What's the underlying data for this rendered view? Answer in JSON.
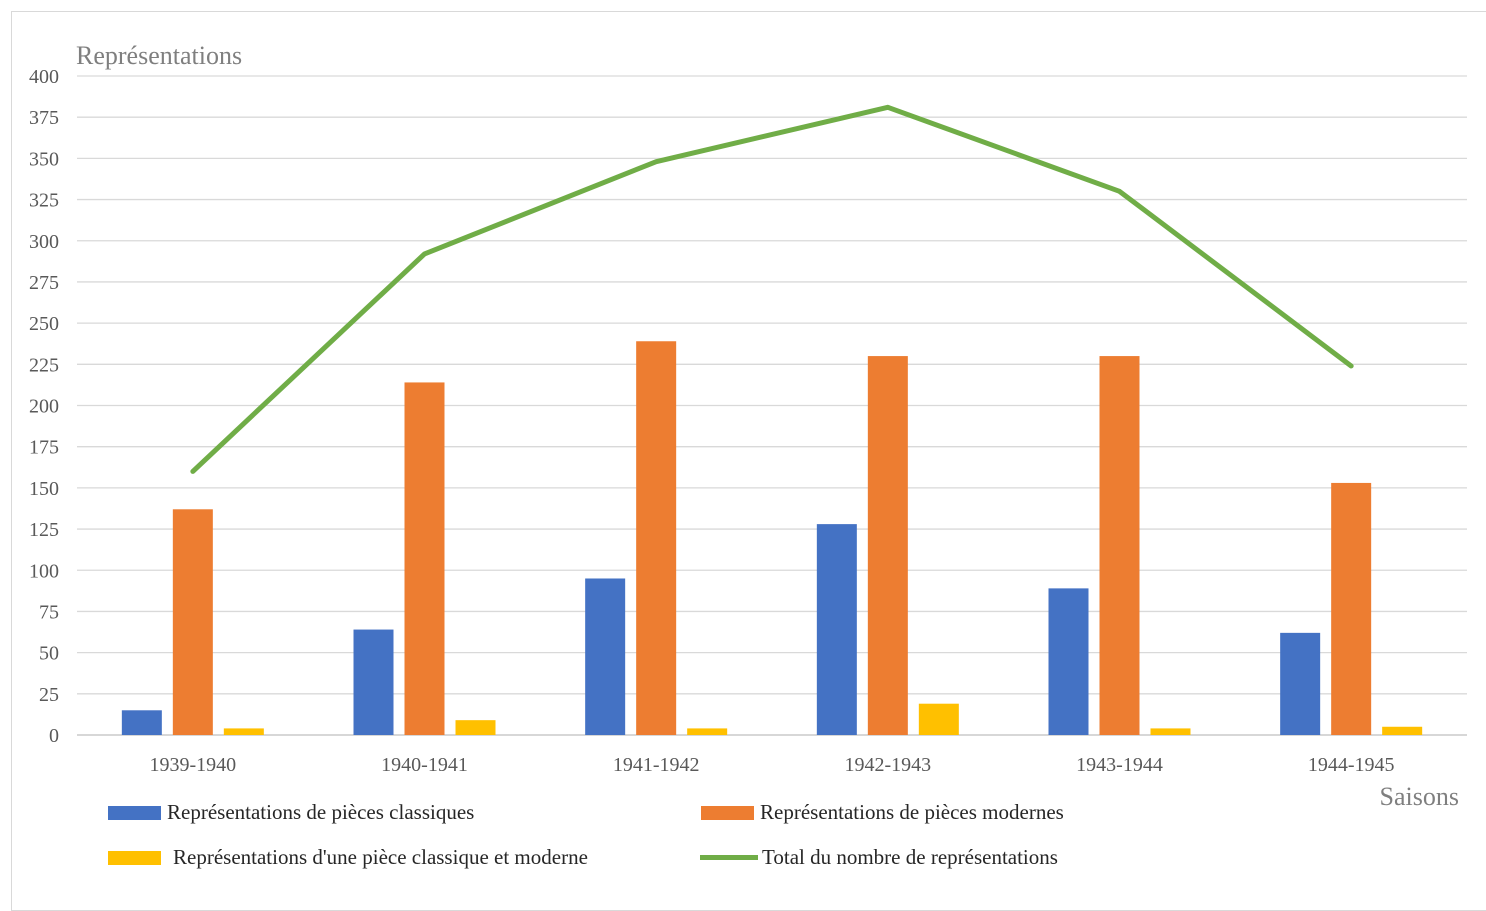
{
  "chart_data": {
    "type": "bar",
    "ylabel": "Représentations",
    "xlabel": "Saisons",
    "categories": [
      "1939-1940",
      "1940-1941",
      "1941-1942",
      "1942-1943",
      "1943-1944",
      "1944-1945"
    ],
    "ylim": [
      0,
      400
    ],
    "yticks": [
      0,
      25,
      50,
      75,
      100,
      125,
      150,
      175,
      200,
      225,
      250,
      275,
      300,
      325,
      350,
      375,
      400
    ],
    "grid": true,
    "legend_position": "bottom",
    "series": [
      {
        "name": "Représentations de pièces classiques",
        "type": "bar",
        "color": "#4472c4",
        "values": [
          15,
          64,
          95,
          128,
          89,
          62
        ]
      },
      {
        "name": "Représentations de pièces modernes",
        "type": "bar",
        "color": "#ed7d31",
        "values": [
          137,
          214,
          239,
          230,
          230,
          153
        ]
      },
      {
        "name": "Représentations d'une pièce classique et moderne",
        "type": "bar",
        "color": "#ffc000",
        "values": [
          4,
          9,
          4,
          19,
          4,
          5
        ]
      },
      {
        "name": "Total du nombre de représentations",
        "type": "line",
        "color": "#70ad47",
        "values": [
          160,
          292,
          348,
          381,
          330,
          224
        ]
      }
    ]
  }
}
